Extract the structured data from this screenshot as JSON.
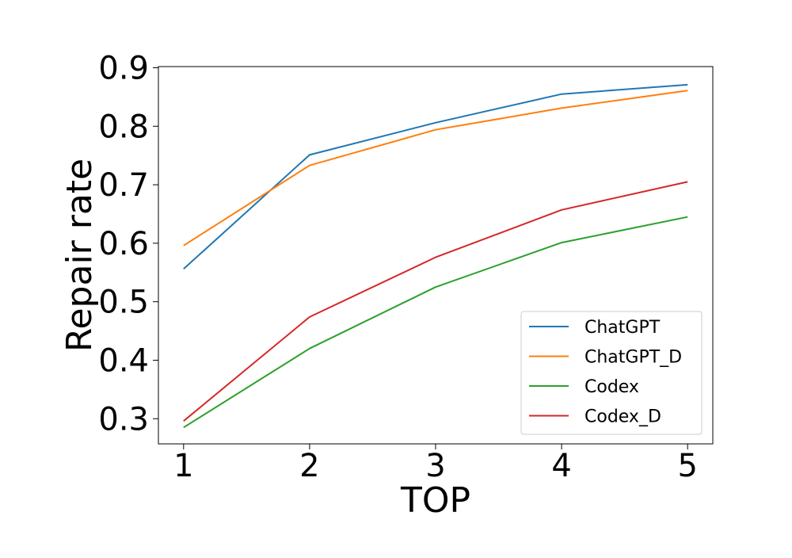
{
  "chart_data": {
    "type": "line",
    "title": "",
    "xlabel": "TOP",
    "ylabel": "Repair rate",
    "x": [
      1,
      2,
      3,
      4,
      5
    ],
    "x_ticks": [
      "1",
      "2",
      "3",
      "4",
      "5"
    ],
    "y_ticks": [
      "0.3",
      "0.4",
      "0.5",
      "0.6",
      "0.7",
      "0.8",
      "0.9"
    ],
    "y_tick_values": [
      0.3,
      0.4,
      0.5,
      0.6,
      0.7,
      0.8,
      0.9
    ],
    "xlim": [
      0.8,
      5.2
    ],
    "ylim": [
      0.257,
      0.902
    ],
    "grid": false,
    "legend_position": "lower-right",
    "series": [
      {
        "name": "ChatGPT",
        "color": "#1f77b4",
        "values": [
          0.556,
          0.751,
          0.806,
          0.855,
          0.871
        ]
      },
      {
        "name": "ChatGPT_D",
        "color": "#ff7f0e",
        "values": [
          0.596,
          0.733,
          0.794,
          0.831,
          0.861
        ]
      },
      {
        "name": "Codex",
        "color": "#2ca02c",
        "values": [
          0.285,
          0.42,
          0.525,
          0.601,
          0.645
        ]
      },
      {
        "name": "Codex_D",
        "color": "#d62728",
        "values": [
          0.296,
          0.474,
          0.576,
          0.657,
          0.705
        ]
      }
    ]
  }
}
